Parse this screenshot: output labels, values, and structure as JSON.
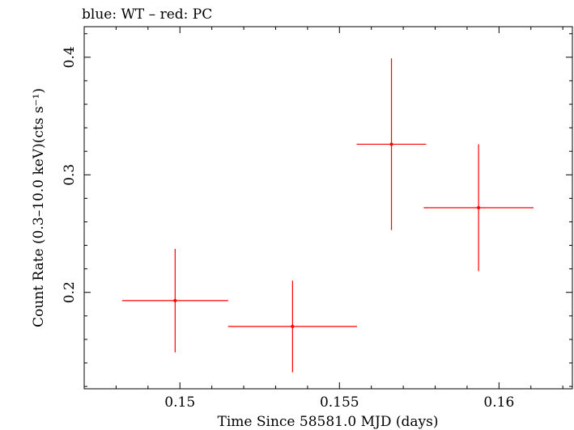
{
  "chart_data": {
    "type": "scatter",
    "title": "blue: WT – red: PC",
    "xlabel": "Time Since 58581.0 MJD (days)",
    "ylabel": "Count Rate (0.3–10.0 keV)(cts s⁻¹)",
    "xlim": [
      0.147,
      0.1623
    ],
    "ylim": [
      0.118,
      0.426
    ],
    "x_ticks": [
      0.15,
      0.155,
      0.16
    ],
    "x_tick_labels": [
      "0.15",
      "0.155",
      "0.16"
    ],
    "y_ticks": [
      0.2,
      0.3,
      0.4
    ],
    "y_tick_labels": [
      "0.2",
      "0.3",
      "0.4"
    ],
    "grid": false,
    "series": [
      {
        "color": "#ff0000",
        "points": [
          {
            "x": 0.14985,
            "y": 0.193,
            "xerr": [
              0.00166,
              0.00166
            ],
            "yerr": [
              0.044,
              0.044
            ]
          },
          {
            "x": 0.15353,
            "y": 0.171,
            "xerr": [
              0.00202,
              0.00202
            ],
            "yerr": [
              0.039,
              0.039
            ]
          },
          {
            "x": 0.15663,
            "y": 0.326,
            "xerr": [
              0.00109,
              0.00109
            ],
            "yerr": [
              0.073,
              0.073
            ]
          },
          {
            "x": 0.15936,
            "y": 0.272,
            "xerr": [
              0.00172,
              0.00172
            ],
            "yerr": [
              0.054,
              0.054
            ]
          }
        ]
      }
    ]
  }
}
